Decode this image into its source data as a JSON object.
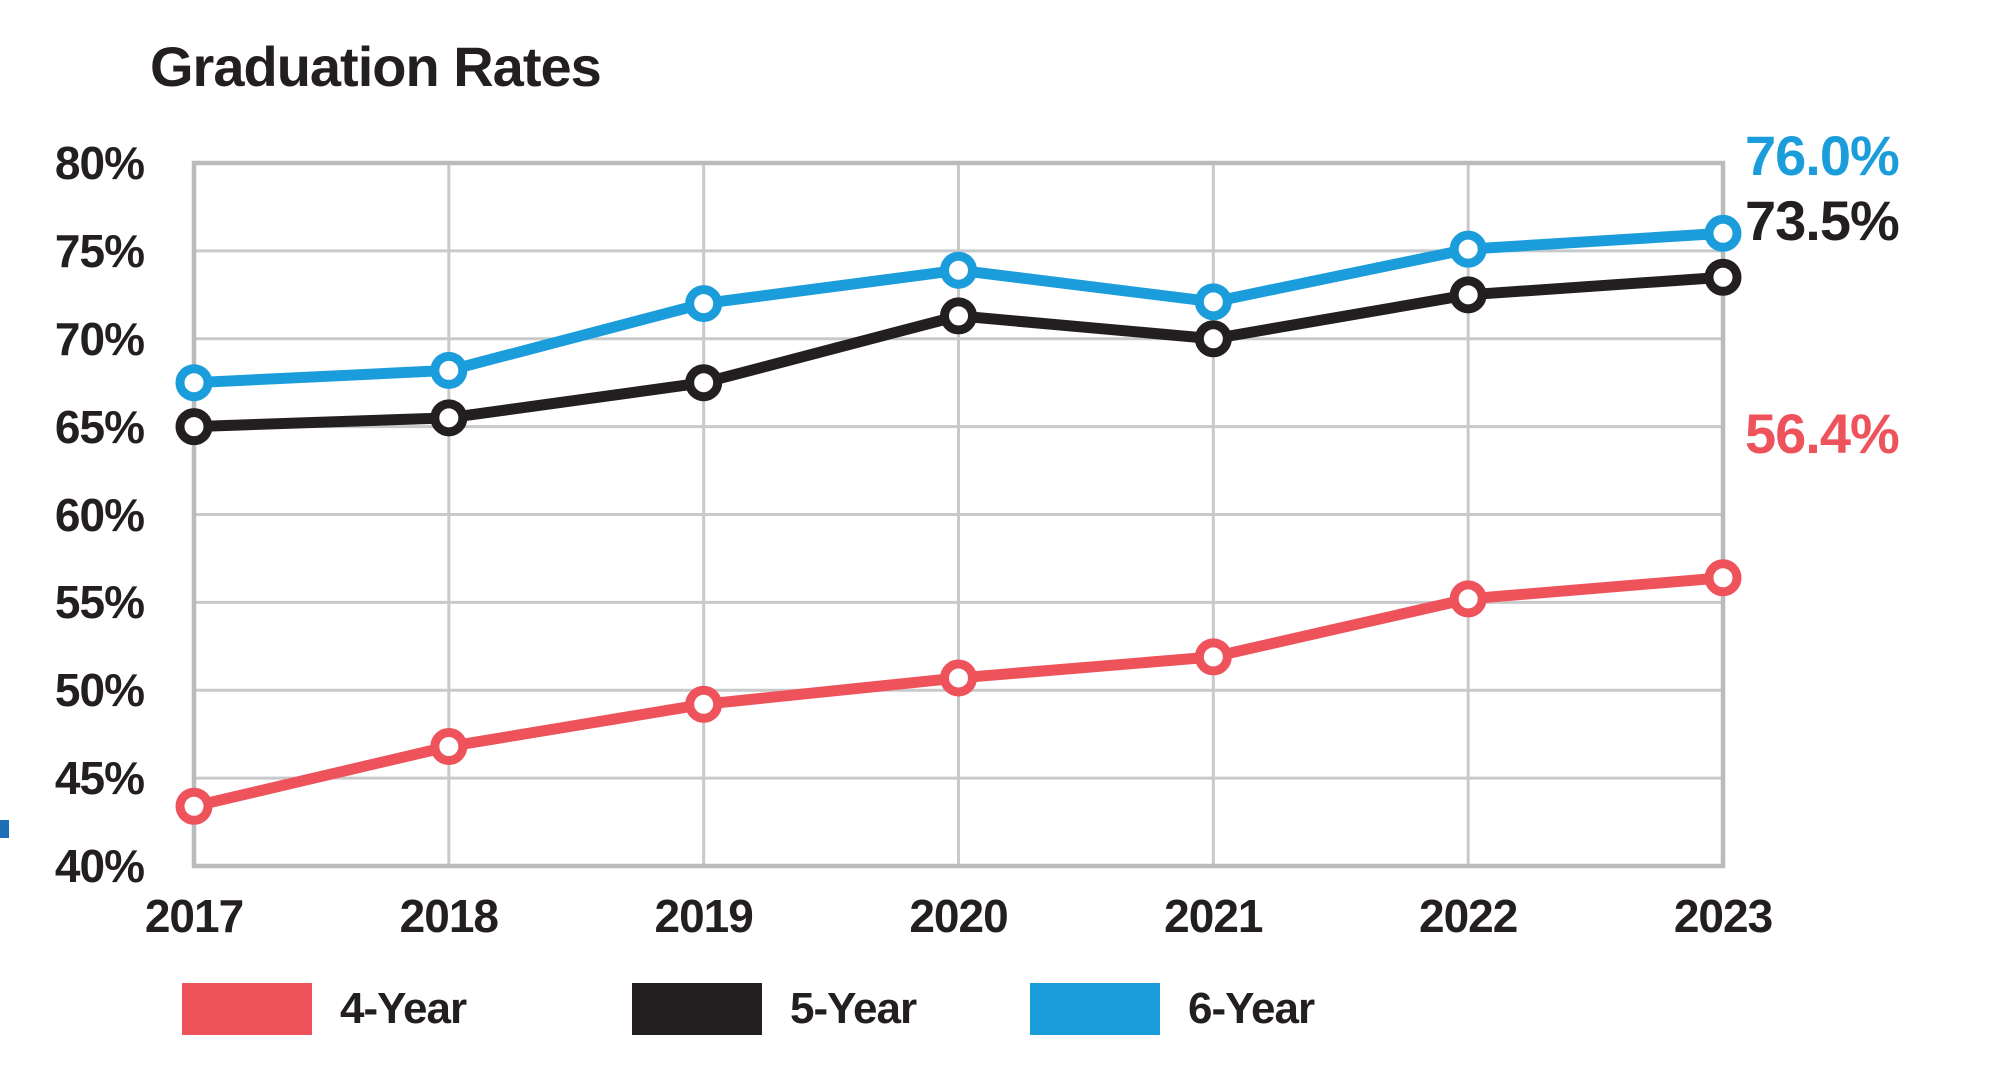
{
  "title": "Graduation Rates",
  "colors": {
    "four_year": "#ee525b",
    "five_year": "#231f20",
    "six_year": "#1b9ddb",
    "grid": "#c8c9cb",
    "border": "#b9bbbd",
    "marker_fill": "#ffffff",
    "edge_artifact": "#1d6fb5"
  },
  "chart_data": {
    "type": "line",
    "title": "Graduation Rates",
    "x": [
      "2017",
      "2018",
      "2019",
      "2020",
      "2021",
      "2022",
      "2023"
    ],
    "series": [
      {
        "name": "4-Year",
        "color_key": "four_year",
        "values": [
          43.4,
          46.8,
          49.2,
          50.7,
          51.9,
          55.2,
          56.4
        ],
        "end_label": "56.4%"
      },
      {
        "name": "5-Year",
        "color_key": "five_year",
        "values": [
          65.0,
          65.5,
          67.5,
          71.3,
          70.0,
          72.5,
          73.5
        ],
        "end_label": "73.5%"
      },
      {
        "name": "6-Year",
        "color_key": "six_year",
        "values": [
          67.5,
          68.2,
          72.0,
          73.9,
          72.1,
          75.1,
          76.0
        ],
        "end_label": "76.0%"
      }
    ],
    "ylim": [
      40,
      80
    ],
    "yticks": [
      "80%",
      "75%",
      "70%",
      "65%",
      "60%",
      "55%",
      "50%",
      "45%",
      "40%"
    ],
    "grid": true,
    "legend_position": "bottom",
    "line_width": 11,
    "marker_radius": 14,
    "marker_stroke": 9
  }
}
